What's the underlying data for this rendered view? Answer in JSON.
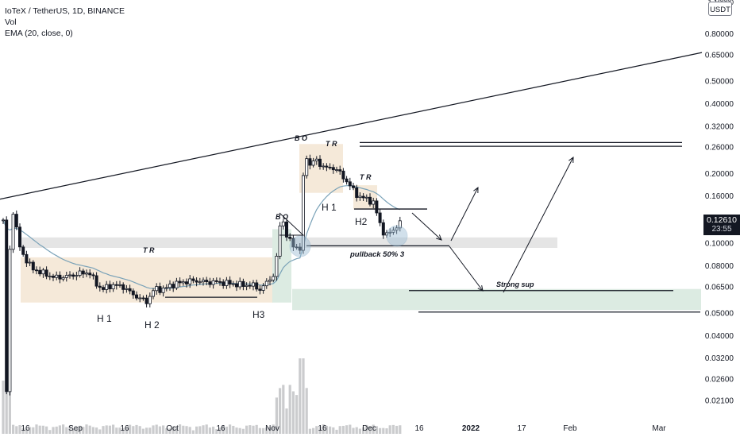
{
  "header": {
    "symbol": "IoTeX / TetherUS, 1D, BINANCE",
    "vol": "Vol",
    "ema": "EMA (20, close, 0)"
  },
  "unit_label": "USDT",
  "last_price": {
    "value": "0.12610",
    "countdown": "23:55"
  },
  "chart_data": {
    "type": "candlestick",
    "scale": "log",
    "y_ticks": [
      "0.80000",
      "0.65000",
      "0.50000",
      "0.40000",
      "0.32000",
      "0.26000",
      "0.20000",
      "0.16000",
      "0.12610",
      "0.10000",
      "0.08000",
      "0.06500",
      "0.05000",
      "0.04000",
      "0.03200",
      "0.02600",
      "0.02100"
    ],
    "x_ticks": [
      "16",
      "Sep",
      "16",
      "Oct",
      "16",
      "Nov",
      "16",
      "Dec",
      "16",
      "2022",
      "17",
      "Feb",
      "Mar"
    ],
    "ylim": [
      0.0165,
      1.0
    ],
    "annotations": [
      "H 1",
      "H 2",
      "H3",
      "H 1",
      "H2",
      "T R",
      "T R",
      "T R",
      "B O",
      "B O",
      "pullback 50% 3",
      "Strong sup"
    ],
    "colors": {
      "up": "#089981",
      "down": "#131722",
      "candle": "#131722",
      "ema": "#7aa2b8",
      "volume": "#131722",
      "range_box": "#f3e3cf",
      "support_box": "#dcebe2",
      "resistance_band": "#dcdcdc",
      "circle": "#9bbcd4"
    }
  }
}
